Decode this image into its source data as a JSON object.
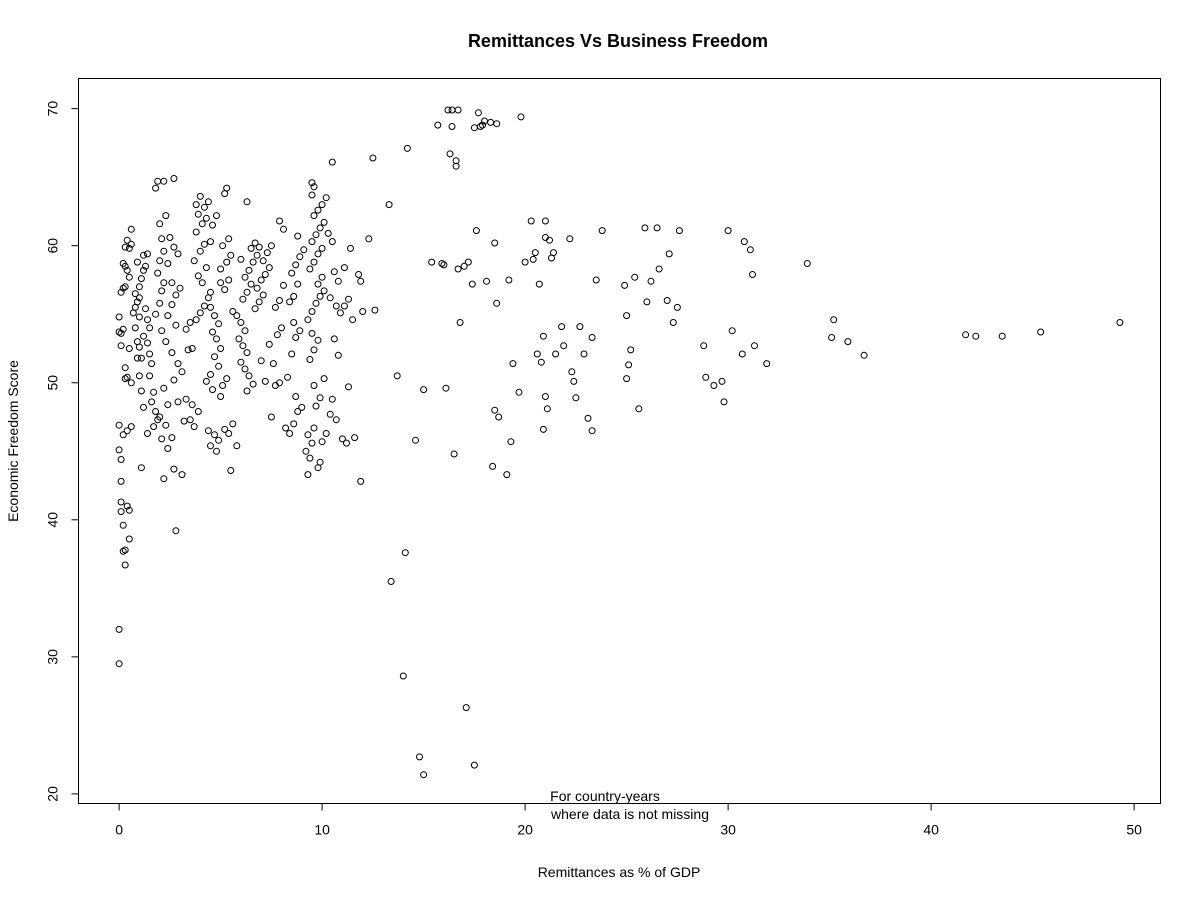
{
  "chart_data": {
    "type": "scatter",
    "title": "Remittances Vs Business Freedom",
    "xlabel": "Remittances as % of GDP",
    "ylabel": "Economic Freedom Score",
    "annotation": [
      "For country-years",
      "where data is not missing"
    ],
    "xlim": [
      -2,
      51.3
    ],
    "ylim": [
      19.3,
      72.2
    ],
    "x_ticks": [
      0,
      10,
      20,
      30,
      40,
      50
    ],
    "y_ticks": [
      20,
      30,
      40,
      50,
      60,
      70
    ],
    "grid": false,
    "legend": "none",
    "point_color": "#000000",
    "points": [
      [
        0.0,
        32.0
      ],
      [
        0.0,
        29.5
      ],
      [
        0.1,
        42.8
      ],
      [
        0.1,
        41.3
      ],
      [
        0.1,
        40.6
      ],
      [
        0.2,
        39.6
      ],
      [
        0.3,
        37.8
      ],
      [
        0.2,
        37.7
      ],
      [
        0.3,
        36.7
      ],
      [
        0.4,
        41.0
      ],
      [
        0.5,
        40.7
      ],
      [
        0.5,
        38.6
      ],
      [
        0.0,
        45.1
      ],
      [
        0.1,
        44.4
      ],
      [
        0.0,
        46.9
      ],
      [
        0.2,
        46.2
      ],
      [
        0.4,
        46.5
      ],
      [
        0.6,
        46.8
      ],
      [
        0.1,
        53.6
      ],
      [
        0.0,
        54.8
      ],
      [
        0.2,
        53.9
      ],
      [
        0.0,
        53.7
      ],
      [
        0.1,
        52.7
      ],
      [
        0.3,
        50.3
      ],
      [
        0.3,
        51.1
      ],
      [
        0.5,
        52.5
      ],
      [
        0.6,
        50.0
      ],
      [
        0.4,
        50.4
      ],
      [
        0.1,
        56.6
      ],
      [
        0.2,
        56.9
      ],
      [
        0.3,
        58.5
      ],
      [
        0.2,
        58.7
      ],
      [
        0.3,
        59.9
      ],
      [
        0.4,
        60.4
      ],
      [
        0.5,
        59.8
      ],
      [
        0.6,
        60.1
      ],
      [
        0.6,
        61.2
      ],
      [
        0.4,
        58.2
      ],
      [
        0.5,
        57.7
      ],
      [
        0.3,
        57.0
      ],
      [
        0.7,
        55.1
      ],
      [
        0.8,
        55.5
      ],
      [
        0.9,
        55.9
      ],
      [
        1.0,
        54.8
      ],
      [
        0.8,
        54.0
      ],
      [
        0.9,
        53.0
      ],
      [
        1.0,
        52.6
      ],
      [
        1.1,
        51.8
      ],
      [
        0.9,
        51.8
      ],
      [
        1.0,
        50.5
      ],
      [
        1.1,
        49.4
      ],
      [
        1.2,
        48.2
      ],
      [
        0.8,
        56.5
      ],
      [
        1.0,
        57.0
      ],
      [
        1.1,
        57.6
      ],
      [
        1.2,
        58.2
      ],
      [
        1.3,
        58.5
      ],
      [
        1.2,
        59.3
      ],
      [
        1.4,
        59.4
      ],
      [
        0.9,
        58.8
      ],
      [
        1.0,
        56.2
      ],
      [
        1.3,
        55.4
      ],
      [
        1.4,
        54.6
      ],
      [
        1.5,
        54.0
      ],
      [
        1.2,
        53.4
      ],
      [
        1.4,
        52.9
      ],
      [
        1.5,
        52.1
      ],
      [
        1.6,
        51.4
      ],
      [
        1.5,
        50.5
      ],
      [
        1.7,
        49.3
      ],
      [
        1.6,
        48.6
      ],
      [
        1.8,
        47.9
      ],
      [
        1.9,
        47.3
      ],
      [
        1.7,
        46.8
      ],
      [
        1.4,
        46.3
      ],
      [
        1.1,
        43.8
      ],
      [
        1.8,
        55.0
      ],
      [
        2.0,
        55.8
      ],
      [
        2.1,
        56.7
      ],
      [
        2.2,
        57.3
      ],
      [
        1.9,
        58.0
      ],
      [
        2.0,
        58.9
      ],
      [
        2.2,
        59.6
      ],
      [
        2.1,
        60.5
      ],
      [
        2.0,
        61.6
      ],
      [
        2.3,
        62.2
      ],
      [
        1.8,
        64.2
      ],
      [
        1.9,
        64.7
      ],
      [
        2.2,
        64.7
      ],
      [
        2.7,
        64.9
      ],
      [
        2.5,
        60.6
      ],
      [
        2.7,
        59.9
      ],
      [
        2.9,
        59.4
      ],
      [
        2.4,
        58.7
      ],
      [
        2.6,
        57.3
      ],
      [
        2.8,
        56.4
      ],
      [
        3.0,
        56.9
      ],
      [
        2.6,
        55.7
      ],
      [
        2.4,
        54.9
      ],
      [
        2.8,
        54.2
      ],
      [
        2.1,
        53.8
      ],
      [
        2.3,
        53.0
      ],
      [
        2.6,
        52.2
      ],
      [
        2.9,
        51.4
      ],
      [
        3.1,
        50.8
      ],
      [
        2.7,
        50.2
      ],
      [
        2.2,
        49.6
      ],
      [
        2.4,
        48.4
      ],
      [
        2.0,
        47.5
      ],
      [
        2.3,
        46.9
      ],
      [
        2.1,
        45.9
      ],
      [
        2.4,
        45.2
      ],
      [
        2.2,
        43.0
      ],
      [
        2.7,
        43.7
      ],
      [
        3.1,
        43.3
      ],
      [
        2.8,
        39.2
      ],
      [
        2.6,
        46.0
      ],
      [
        2.9,
        48.6
      ],
      [
        3.3,
        48.8
      ],
      [
        3.6,
        48.4
      ],
      [
        3.9,
        47.9
      ],
      [
        3.2,
        47.2
      ],
      [
        3.5,
        47.3
      ],
      [
        3.7,
        46.8
      ],
      [
        3.4,
        52.4
      ],
      [
        3.6,
        52.5
      ],
      [
        3.3,
        53.9
      ],
      [
        3.5,
        54.4
      ],
      [
        3.8,
        54.6
      ],
      [
        4.0,
        55.1
      ],
      [
        4.2,
        55.6
      ],
      [
        4.4,
        56.2
      ],
      [
        4.5,
        56.6
      ],
      [
        4.1,
        57.3
      ],
      [
        3.9,
        57.8
      ],
      [
        4.3,
        58.4
      ],
      [
        3.7,
        58.9
      ],
      [
        4.0,
        59.6
      ],
      [
        4.2,
        60.1
      ],
      [
        4.5,
        60.3
      ],
      [
        3.8,
        61.0
      ],
      [
        4.1,
        61.6
      ],
      [
        4.3,
        62.0
      ],
      [
        3.9,
        62.3
      ],
      [
        4.2,
        62.8
      ],
      [
        4.4,
        63.2
      ],
      [
        4.0,
        63.6
      ],
      [
        3.8,
        63.0
      ],
      [
        4.5,
        55.5
      ],
      [
        4.7,
        54.9
      ],
      [
        4.9,
        54.3
      ],
      [
        4.6,
        53.7
      ],
      [
        4.8,
        53.2
      ],
      [
        5.0,
        52.5
      ],
      [
        4.7,
        51.9
      ],
      [
        4.9,
        51.2
      ],
      [
        4.5,
        50.6
      ],
      [
        4.3,
        50.1
      ],
      [
        4.6,
        49.5
      ],
      [
        5.0,
        49.0
      ],
      [
        4.4,
        46.5
      ],
      [
        4.7,
        46.2
      ],
      [
        4.9,
        45.8
      ],
      [
        4.5,
        45.4
      ],
      [
        4.8,
        45.0
      ],
      [
        5.2,
        46.6
      ],
      [
        5.4,
        46.3
      ],
      [
        5.6,
        47.0
      ],
      [
        5.8,
        45.4
      ],
      [
        5.5,
        43.6
      ],
      [
        5.1,
        49.8
      ],
      [
        5.3,
        50.3
      ],
      [
        5.0,
        57.3
      ],
      [
        5.2,
        56.8
      ],
      [
        5.4,
        57.5
      ],
      [
        5.0,
        58.3
      ],
      [
        5.3,
        58.8
      ],
      [
        5.5,
        59.3
      ],
      [
        5.1,
        60.0
      ],
      [
        5.4,
        60.5
      ],
      [
        5.2,
        63.8
      ],
      [
        5.3,
        64.2
      ],
      [
        4.6,
        61.5
      ],
      [
        4.8,
        62.2
      ],
      [
        5.6,
        55.2
      ],
      [
        5.8,
        54.9
      ],
      [
        6.0,
        54.4
      ],
      [
        6.2,
        53.8
      ],
      [
        5.9,
        53.2
      ],
      [
        6.1,
        52.7
      ],
      [
        6.3,
        52.2
      ],
      [
        6.0,
        51.5
      ],
      [
        6.2,
        51.0
      ],
      [
        6.4,
        50.5
      ],
      [
        6.6,
        49.9
      ],
      [
        6.3,
        49.4
      ],
      [
        6.1,
        56.1
      ],
      [
        6.3,
        56.6
      ],
      [
        6.5,
        57.2
      ],
      [
        6.2,
        57.7
      ],
      [
        6.4,
        58.2
      ],
      [
        6.6,
        58.8
      ],
      [
        6.8,
        59.3
      ],
      [
        6.5,
        59.8
      ],
      [
        6.7,
        60.2
      ],
      [
        6.9,
        59.9
      ],
      [
        6.3,
        63.2
      ],
      [
        6.0,
        59.0
      ],
      [
        6.7,
        55.4
      ],
      [
        6.9,
        55.9
      ],
      [
        7.1,
        56.4
      ],
      [
        6.8,
        56.9
      ],
      [
        7.0,
        57.5
      ],
      [
        7.2,
        57.9
      ],
      [
        7.4,
        58.4
      ],
      [
        7.1,
        58.9
      ],
      [
        7.3,
        59.5
      ],
      [
        7.5,
        60.0
      ],
      [
        7.0,
        51.6
      ],
      [
        7.2,
        50.1
      ],
      [
        7.5,
        47.5
      ],
      [
        7.7,
        49.8
      ],
      [
        7.9,
        50.0
      ],
      [
        7.6,
        51.4
      ],
      [
        7.4,
        52.8
      ],
      [
        7.8,
        53.5
      ],
      [
        8.0,
        54.0
      ],
      [
        7.7,
        55.5
      ],
      [
        7.9,
        56.0
      ],
      [
        8.1,
        57.1
      ],
      [
        7.9,
        61.8
      ],
      [
        8.1,
        61.2
      ],
      [
        8.2,
        46.7
      ],
      [
        8.4,
        46.3
      ],
      [
        8.6,
        47.0
      ],
      [
        8.8,
        47.9
      ],
      [
        9.0,
        48.2
      ],
      [
        8.7,
        49.0
      ],
      [
        8.3,
        50.4
      ],
      [
        8.5,
        52.1
      ],
      [
        8.7,
        53.3
      ],
      [
        8.9,
        53.8
      ],
      [
        8.6,
        54.4
      ],
      [
        8.4,
        55.9
      ],
      [
        8.6,
        56.3
      ],
      [
        8.8,
        57.2
      ],
      [
        8.5,
        58.0
      ],
      [
        8.7,
        58.6
      ],
      [
        8.9,
        59.2
      ],
      [
        9.1,
        59.7
      ],
      [
        8.8,
        60.7
      ],
      [
        9.3,
        43.3
      ],
      [
        9.4,
        44.5
      ],
      [
        9.2,
        45.0
      ],
      [
        9.5,
        45.6
      ],
      [
        9.3,
        46.2
      ],
      [
        9.6,
        46.7
      ],
      [
        9.8,
        43.8
      ],
      [
        9.9,
        44.2
      ],
      [
        10.0,
        45.7
      ],
      [
        10.2,
        46.3
      ],
      [
        9.7,
        48.3
      ],
      [
        9.9,
        48.9
      ],
      [
        9.6,
        49.8
      ],
      [
        10.1,
        50.3
      ],
      [
        9.4,
        51.7
      ],
      [
        9.6,
        52.4
      ],
      [
        9.8,
        53.1
      ],
      [
        9.5,
        53.6
      ],
      [
        9.3,
        54.6
      ],
      [
        9.5,
        55.2
      ],
      [
        9.7,
        55.8
      ],
      [
        9.9,
        56.3
      ],
      [
        10.1,
        56.7
      ],
      [
        9.8,
        57.2
      ],
      [
        10.0,
        57.7
      ],
      [
        9.4,
        58.3
      ],
      [
        9.6,
        58.8
      ],
      [
        9.8,
        59.4
      ],
      [
        10.0,
        59.8
      ],
      [
        9.5,
        60.3
      ],
      [
        9.7,
        60.8
      ],
      [
        9.9,
        61.3
      ],
      [
        10.1,
        61.7
      ],
      [
        9.6,
        62.2
      ],
      [
        9.8,
        62.6
      ],
      [
        10.0,
        63.0
      ],
      [
        9.5,
        63.7
      ],
      [
        9.6,
        64.3
      ],
      [
        9.5,
        64.6
      ],
      [
        10.2,
        63.5
      ],
      [
        10.5,
        66.1
      ],
      [
        10.3,
        60.9
      ],
      [
        10.5,
        60.3
      ],
      [
        10.6,
        58.1
      ],
      [
        10.8,
        57.4
      ],
      [
        10.4,
        56.2
      ],
      [
        10.7,
        55.6
      ],
      [
        10.9,
        55.1
      ],
      [
        10.6,
        53.2
      ],
      [
        10.8,
        52.0
      ],
      [
        10.5,
        48.8
      ],
      [
        10.7,
        47.3
      ],
      [
        10.4,
        47.7
      ],
      [
        11.0,
        45.9
      ],
      [
        11.2,
        45.6
      ],
      [
        11.3,
        49.7
      ],
      [
        11.1,
        55.6
      ],
      [
        11.3,
        56.1
      ],
      [
        11.1,
        58.4
      ],
      [
        11.4,
        59.8
      ],
      [
        11.5,
        54.6
      ],
      [
        11.6,
        46.0
      ],
      [
        11.9,
        42.8
      ],
      [
        11.8,
        57.9
      ],
      [
        11.9,
        57.4
      ],
      [
        12.0,
        55.2
      ],
      [
        12.3,
        60.5
      ],
      [
        12.6,
        55.3
      ],
      [
        12.5,
        66.4
      ],
      [
        13.3,
        63.0
      ],
      [
        13.4,
        35.5
      ],
      [
        13.7,
        50.5
      ],
      [
        14.0,
        28.6
      ],
      [
        14.1,
        37.6
      ],
      [
        14.2,
        67.1
      ],
      [
        14.6,
        45.8
      ],
      [
        14.8,
        22.7
      ],
      [
        15.0,
        21.4
      ],
      [
        15.0,
        49.5
      ],
      [
        15.4,
        58.8
      ],
      [
        15.7,
        68.8
      ],
      [
        15.9,
        58.7
      ],
      [
        16.0,
        58.6
      ],
      [
        16.1,
        49.6
      ],
      [
        16.2,
        69.9
      ],
      [
        16.3,
        66.7
      ],
      [
        16.4,
        68.7
      ],
      [
        16.4,
        69.9
      ],
      [
        16.5,
        44.8
      ],
      [
        16.6,
        65.8
      ],
      [
        16.6,
        66.2
      ],
      [
        16.7,
        69.9
      ],
      [
        16.7,
        58.3
      ],
      [
        16.8,
        54.4
      ],
      [
        17.0,
        58.5
      ],
      [
        17.1,
        26.3
      ],
      [
        17.2,
        58.8
      ],
      [
        17.4,
        57.2
      ],
      [
        17.5,
        22.1
      ],
      [
        17.6,
        61.1
      ],
      [
        17.5,
        68.6
      ],
      [
        17.7,
        69.7
      ],
      [
        17.8,
        68.7
      ],
      [
        17.9,
        68.8
      ],
      [
        18.0,
        69.1
      ],
      [
        18.1,
        57.4
      ],
      [
        18.3,
        69.0
      ],
      [
        18.4,
        43.9
      ],
      [
        18.5,
        48.0
      ],
      [
        18.5,
        60.2
      ],
      [
        18.6,
        55.8
      ],
      [
        18.6,
        68.9
      ],
      [
        18.7,
        47.5
      ],
      [
        19.1,
        43.3
      ],
      [
        19.2,
        57.5
      ],
      [
        19.3,
        45.7
      ],
      [
        19.4,
        51.4
      ],
      [
        19.7,
        49.3
      ],
      [
        19.8,
        69.4
      ],
      [
        20.0,
        58.8
      ],
      [
        20.3,
        61.8
      ],
      [
        20.4,
        59.0
      ],
      [
        20.5,
        59.5
      ],
      [
        20.6,
        52.1
      ],
      [
        20.7,
        57.2
      ],
      [
        20.8,
        51.5
      ],
      [
        20.9,
        46.6
      ],
      [
        20.9,
        53.4
      ],
      [
        21.0,
        61.8
      ],
      [
        21.0,
        60.6
      ],
      [
        21.0,
        49.0
      ],
      [
        21.1,
        48.1
      ],
      [
        21.2,
        60.4
      ],
      [
        21.3,
        59.1
      ],
      [
        21.4,
        59.5
      ],
      [
        21.5,
        52.1
      ],
      [
        21.8,
        54.1
      ],
      [
        21.9,
        52.7
      ],
      [
        22.2,
        60.5
      ],
      [
        22.3,
        50.8
      ],
      [
        22.4,
        50.1
      ],
      [
        22.5,
        48.9
      ],
      [
        22.7,
        54.1
      ],
      [
        22.9,
        52.1
      ],
      [
        23.1,
        47.4
      ],
      [
        23.3,
        53.3
      ],
      [
        23.3,
        46.5
      ],
      [
        23.5,
        57.5
      ],
      [
        23.8,
        61.1
      ],
      [
        24.9,
        57.1
      ],
      [
        25.0,
        54.9
      ],
      [
        25.0,
        50.3
      ],
      [
        25.1,
        51.3
      ],
      [
        25.2,
        52.4
      ],
      [
        25.4,
        57.7
      ],
      [
        25.6,
        48.1
      ],
      [
        25.9,
        61.3
      ],
      [
        26.0,
        55.9
      ],
      [
        26.2,
        57.4
      ],
      [
        26.5,
        61.3
      ],
      [
        26.6,
        58.3
      ],
      [
        27.0,
        56.0
      ],
      [
        27.1,
        59.4
      ],
      [
        27.3,
        54.4
      ],
      [
        27.5,
        55.5
      ],
      [
        27.6,
        61.1
      ],
      [
        28.8,
        52.7
      ],
      [
        28.9,
        50.4
      ],
      [
        29.3,
        49.8
      ],
      [
        29.7,
        50.1
      ],
      [
        29.8,
        48.6
      ],
      [
        30.0,
        61.1
      ],
      [
        30.2,
        53.8
      ],
      [
        30.7,
        52.1
      ],
      [
        30.8,
        60.3
      ],
      [
        31.1,
        59.7
      ],
      [
        31.2,
        57.9
      ],
      [
        31.3,
        52.7
      ],
      [
        31.9,
        51.4
      ],
      [
        33.9,
        58.7
      ],
      [
        35.1,
        53.3
      ],
      [
        35.2,
        54.6
      ],
      [
        35.9,
        53.0
      ],
      [
        36.7,
        52.0
      ],
      [
        41.7,
        53.5
      ],
      [
        42.2,
        53.4
      ],
      [
        43.5,
        53.4
      ],
      [
        45.4,
        53.7
      ],
      [
        49.3,
        54.4
      ]
    ]
  }
}
